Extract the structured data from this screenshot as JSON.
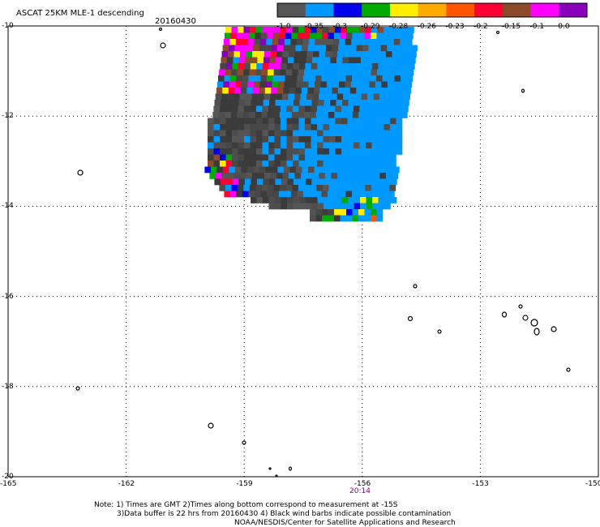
{
  "header": {
    "title": "ASCAT 25KM MLE-1 descending",
    "date": "20160430"
  },
  "colorbar": {
    "segments": [
      {
        "label": "-1.0",
        "color": "#555555"
      },
      {
        "label": "-0.35",
        "color": "#0099ff"
      },
      {
        "label": "-0.3",
        "color": "#0000ee"
      },
      {
        "label": "-0.29",
        "color": "#00aa00"
      },
      {
        "label": "-0.28",
        "color": "#ffee00"
      },
      {
        "label": "-0.26",
        "color": "#ffaa00"
      },
      {
        "label": "-0.23",
        "color": "#ff5500"
      },
      {
        "label": "-0.2",
        "color": "#ff0033"
      },
      {
        "label": "-0.15",
        "color": "#8b4a2a"
      },
      {
        "label": "-0.1",
        "color": "#ff00ff"
      },
      {
        "label": "0.0",
        "color": "#8800bb"
      }
    ]
  },
  "axes": {
    "lat_labels": [
      "-10",
      "-12",
      "-14",
      "-16",
      "-18",
      "-20"
    ],
    "lon_labels": [
      "-165",
      "-162",
      "-159",
      "-156",
      "-153",
      "-150"
    ]
  },
  "time_label": "20:14",
  "notes": [
    "Note: 1) Times are GMT 2)Times along bottom correspond to measurement at -15S",
    "3)Data buffer is 22 hrs from 20160430 4) Black wind barbs indicate possible contamination",
    "NOAA/NESDIS/Center for Satellite Applications and Research"
  ],
  "colors": {
    "grid": "#000000",
    "background": "#ffffff",
    "time_label": "#7a0a7a"
  }
}
